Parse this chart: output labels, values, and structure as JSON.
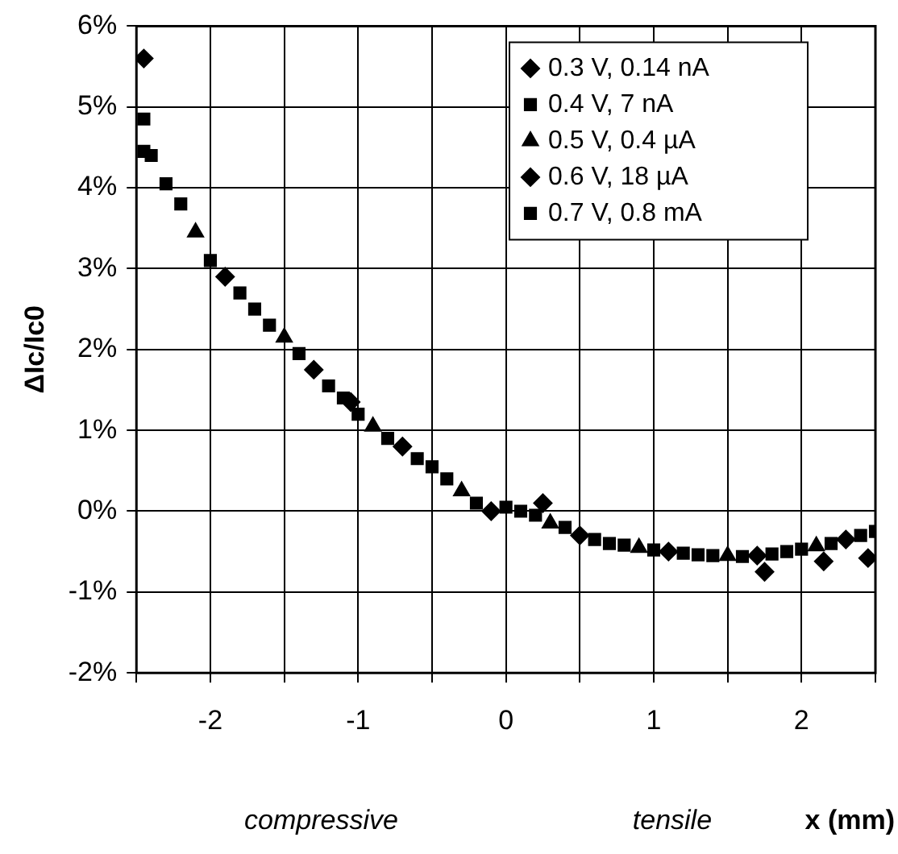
{
  "chart_data": {
    "type": "scatter",
    "ylabel": "ΔIc/Ic0",
    "xlabel": "x (mm)",
    "annotations": [
      "compressive",
      "tensile"
    ],
    "xlim": [
      -2.5,
      2.5
    ],
    "xticks": [
      {
        "value": -2.5,
        "label": null
      },
      -2,
      {
        "value": -1.5,
        "label": null
      },
      -1,
      {
        "value": -0.5,
        "label": null
      },
      0,
      {
        "value": 0.5,
        "label": null
      },
      1,
      {
        "value": 1.5,
        "label": null
      },
      2,
      {
        "value": 2.5,
        "label": null
      }
    ],
    "ylim": [
      -2,
      6
    ],
    "yticks": [
      {
        "value": -2,
        "label": "-2%"
      },
      {
        "value": -1,
        "label": "-1%"
      },
      {
        "value": 0,
        "label": "0%"
      },
      {
        "value": 1,
        "label": "1%"
      },
      {
        "value": 2,
        "label": "2%"
      },
      {
        "value": 3,
        "label": "3%"
      },
      {
        "value": 4,
        "label": "4%"
      },
      {
        "value": 5,
        "label": "5%"
      },
      {
        "value": 6,
        "label": "6%"
      }
    ],
    "grid": true,
    "legend": "top right",
    "series": [
      {
        "name": "0.3 V, 0.14 nA",
        "color": "#000000",
        "marker": "diamond",
        "x": [
          -2.45,
          -1.05,
          0.25,
          1.75,
          2.15,
          2.45
        ],
        "values": [
          5.6,
          1.35,
          0.1,
          -0.75,
          -0.62,
          -0.58
        ]
      },
      {
        "name": "0.4 V, 7 nA",
        "color": "#000000",
        "marker": "square",
        "x": [
          -2.45,
          -2.3,
          -1.7,
          -1.1,
          -0.5,
          0.1,
          0.7,
          1.3,
          1.9,
          2.5
        ],
        "values": [
          4.85,
          4.05,
          2.5,
          1.4,
          0.55,
          0.0,
          -0.4,
          -0.54,
          -0.5,
          -0.25
        ]
      },
      {
        "name": "0.5 V, 0.4 µA",
        "color": "#000000",
        "marker": "triangle",
        "x": [
          -2.1,
          -1.5,
          -0.9,
          -0.3,
          0.3,
          0.9,
          1.5,
          2.1
        ],
        "values": [
          3.45,
          2.15,
          1.05,
          0.25,
          -0.15,
          -0.45,
          -0.55,
          -0.43
        ]
      },
      {
        "name": "0.6 V, 18 µA",
        "color": "#000000",
        "marker": "diamond",
        "x": [
          -1.9,
          -1.3,
          -0.7,
          -0.1,
          0.5,
          1.1,
          1.7,
          2.3
        ],
        "values": [
          2.9,
          1.75,
          0.8,
          0.0,
          -0.3,
          -0.5,
          -0.55,
          -0.35
        ]
      },
      {
        "name": "0.7 V, 0.8 mA",
        "color": "#000000",
        "marker": "square",
        "x": [
          -2.45,
          -2.4,
          -2.2,
          -2.0,
          -1.8,
          -1.6,
          -1.4,
          -1.2,
          -1.0,
          -0.8,
          -0.6,
          -0.4,
          -0.2,
          0.0,
          0.2,
          0.4,
          0.6,
          0.8,
          1.0,
          1.2,
          1.4,
          1.6,
          1.8,
          2.0,
          2.2,
          2.4
        ],
        "values": [
          4.45,
          4.4,
          3.8,
          3.1,
          2.7,
          2.3,
          1.95,
          1.55,
          1.2,
          0.9,
          0.65,
          0.4,
          0.1,
          0.05,
          -0.05,
          -0.2,
          -0.35,
          -0.42,
          -0.48,
          -0.52,
          -0.55,
          -0.56,
          -0.53,
          -0.47,
          -0.4,
          -0.3
        ]
      }
    ]
  }
}
